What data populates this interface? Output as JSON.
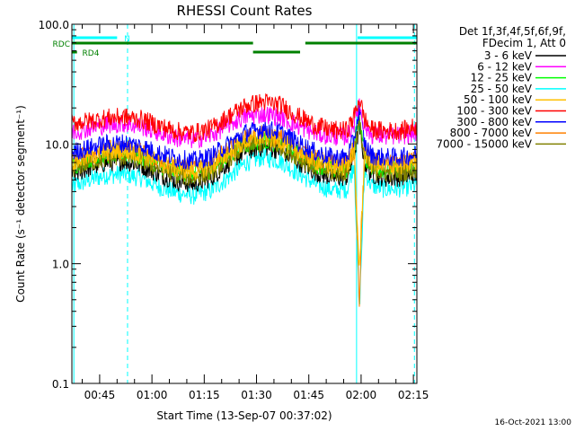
{
  "chart_data": {
    "type": "line",
    "title": "RHESSI Count Rates",
    "xlabel": "Start Time (13-Sep-07 00:37:02)",
    "ylabel": "Count Rate (s⁻¹ detector segment⁻¹)",
    "y_scale": "log",
    "ylim": [
      0.1,
      100.0
    ],
    "xlim_minutes": [
      37.03,
      136.0
    ],
    "x_tick_labels": [
      "00:45",
      "01:00",
      "01:15",
      "01:30",
      "01:45",
      "02:00",
      "02:15"
    ],
    "x_tick_minutes": [
      45,
      60,
      75,
      90,
      105,
      120,
      135
    ],
    "y_tick_labels": [
      "100.0",
      "10.0",
      "1.0",
      "0.1"
    ],
    "y_tick_values": [
      100,
      10,
      1,
      0.1
    ],
    "legend_placement": "right",
    "legend_header": [
      "Det 1f,3f,4f,5f,6f,9f,",
      "FDecim 1, Att 0"
    ],
    "timestamp": "16-Oct-2021 13:00",
    "x": [
      37,
      42,
      47,
      52,
      57,
      62,
      67,
      72,
      77,
      82,
      87,
      92,
      97,
      102,
      107,
      112,
      116,
      118,
      119.5,
      121,
      123,
      127,
      132,
      136
    ],
    "series": [
      {
        "name": "3 - 6 keV",
        "color": "#000000",
        "values": [
          5.5,
          6.3,
          7.0,
          7.2,
          6.6,
          5.6,
          4.9,
          4.6,
          5.2,
          7.0,
          8.8,
          9.5,
          8.8,
          7.1,
          5.8,
          5.2,
          5.3,
          8.0,
          14.0,
          7.0,
          5.6,
          5.2,
          5.3,
          5.6
        ]
      },
      {
        "name": "6 - 12 keV",
        "color": "#ff00ff",
        "values": [
          12.5,
          13.5,
          14.5,
          14.8,
          14.0,
          12.4,
          11.2,
          10.8,
          11.8,
          14.5,
          17.0,
          17.8,
          16.8,
          14.0,
          12.3,
          11.5,
          11.6,
          15.0,
          22.0,
          14.0,
          12.0,
          11.6,
          11.8,
          12.5
        ]
      },
      {
        "name": "12 - 25 keV",
        "color": "#00ff00",
        "values": [
          6.5,
          7.5,
          8.2,
          8.4,
          7.8,
          6.7,
          5.9,
          5.6,
          6.2,
          8.0,
          10.0,
          10.8,
          10.0,
          8.2,
          6.8,
          6.1,
          6.2,
          10.0,
          17.0,
          8.0,
          6.5,
          6.2,
          6.3,
          6.6
        ]
      },
      {
        "name": "25 - 50 keV",
        "color": "#00ffff",
        "values": [
          4.4,
          5.0,
          5.5,
          5.6,
          5.2,
          4.4,
          3.9,
          3.7,
          4.1,
          5.3,
          7.0,
          7.8,
          7.2,
          5.7,
          4.6,
          4.1,
          4.2,
          7.0,
          0.4,
          6.0,
          4.5,
          4.2,
          4.3,
          4.5
        ]
      },
      {
        "name": "50 - 100 keV",
        "color": "#ffc000",
        "values": [
          7.0,
          7.8,
          8.5,
          8.7,
          8.1,
          7.0,
          6.2,
          5.9,
          6.5,
          8.4,
          10.5,
          11.4,
          10.6,
          8.6,
          7.1,
          6.4,
          6.5,
          9.0,
          0.9,
          8.5,
          6.8,
          6.5,
          6.6,
          7.0
        ]
      },
      {
        "name": "100 - 300 keV",
        "color": "#ff0000",
        "values": [
          15.0,
          15.5,
          16.5,
          16.8,
          16.0,
          14.2,
          12.8,
          12.3,
          13.5,
          17.0,
          21.0,
          22.5,
          21.0,
          17.0,
          14.2,
          13.0,
          13.0,
          17.0,
          24.0,
          16.0,
          13.2,
          12.8,
          13.0,
          14.0
        ]
      },
      {
        "name": "300 - 800 keV",
        "color": "#0000ff",
        "values": [
          8.5,
          9.3,
          10.0,
          10.2,
          9.6,
          8.4,
          7.6,
          7.2,
          7.9,
          10.0,
          12.5,
          13.4,
          12.6,
          10.2,
          8.5,
          7.7,
          7.8,
          11.0,
          20.0,
          10.0,
          8.0,
          7.7,
          7.8,
          8.2
        ]
      },
      {
        "name": "800 - 7000 keV",
        "color": "#ff8000",
        "values": [
          7.5,
          8.3,
          9.0,
          9.2,
          8.6,
          7.4,
          6.6,
          6.3,
          7.0,
          9.0,
          11.2,
          12.0,
          11.2,
          9.1,
          7.5,
          6.8,
          6.9,
          9.0,
          0.5,
          9.0,
          7.2,
          6.8,
          6.9,
          7.3
        ]
      },
      {
        "name": "7000 - 15000 keV",
        "color": "#808000",
        "values": [
          6.2,
          7.0,
          7.6,
          7.8,
          7.3,
          6.2,
          5.5,
          5.2,
          5.8,
          7.6,
          9.5,
          10.2,
          9.5,
          7.7,
          6.3,
          5.7,
          5.8,
          9.0,
          15.0,
          7.5,
          6.0,
          5.7,
          5.8,
          6.1
        ]
      }
    ],
    "flags": [
      {
        "name": "N",
        "color": "#00ffff",
        "row": 1,
        "label_color": "#00ffff",
        "segments": [
          [
            37.03,
            50.0
          ],
          [
            119.0,
            136.0
          ]
        ],
        "label_at": 52.0
      },
      {
        "name": "RDC",
        "color": "#008000",
        "row": 2,
        "label_color": "#008000",
        "segments": [
          [
            37.03,
            89.0
          ],
          [
            89.0,
            102.5
          ],
          [
            104.0,
            136.0
          ]
        ],
        "offsets": [
          0,
          1,
          0
        ],
        "label_at": 37.03
      },
      {
        "name": "RD4",
        "color": "#008000",
        "row": 3,
        "label_color": "#008000",
        "segments": [
          [
            37.03,
            38.5
          ]
        ],
        "label_at": 40.0
      }
    ],
    "vertical_lines": [
      {
        "at": 37.6,
        "color": "#00ffff",
        "style": "solid"
      },
      {
        "at": 53.0,
        "color": "#00ffff",
        "style": "dashed"
      },
      {
        "at": 118.7,
        "color": "#00ffff",
        "style": "solid"
      },
      {
        "at": 135.3,
        "color": "#00ffff",
        "style": "dashed"
      }
    ]
  }
}
